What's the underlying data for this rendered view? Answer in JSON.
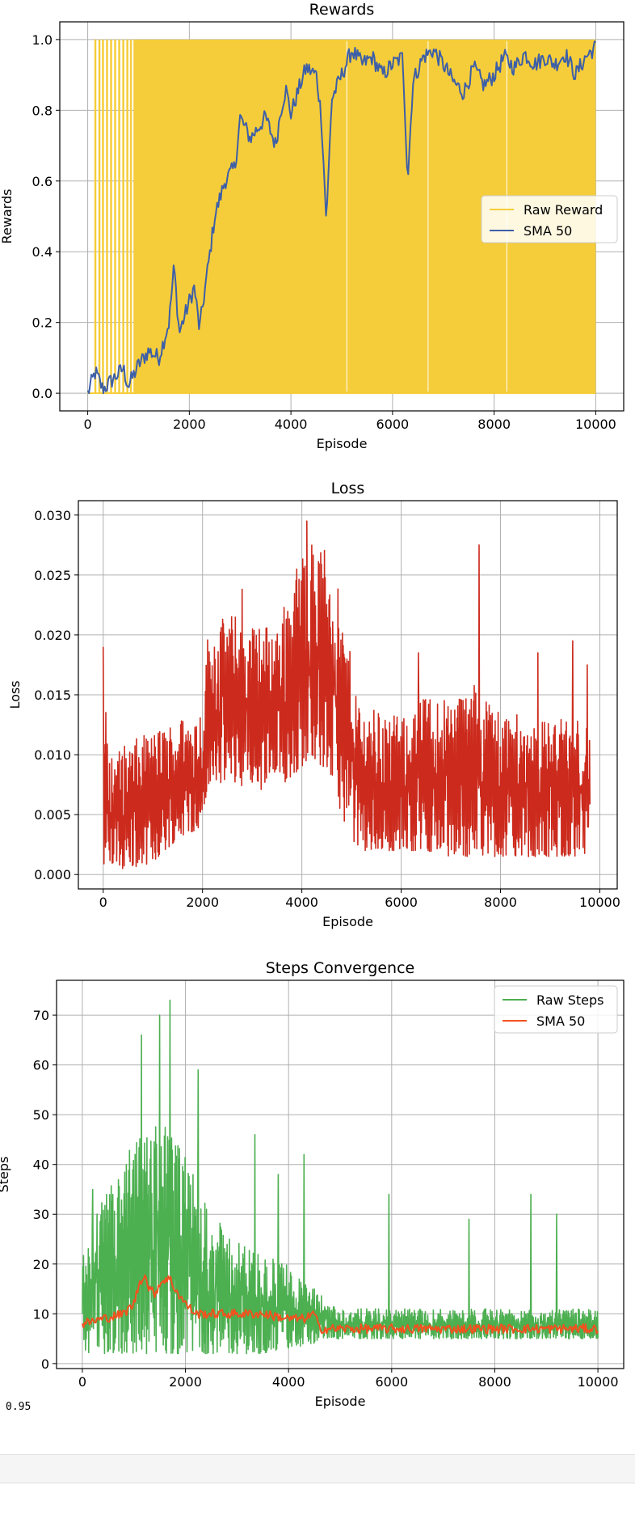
{
  "chart_data": [
    {
      "type": "line",
      "title": "Rewards",
      "xlabel": "Episode",
      "ylabel": "Rewards",
      "xlim": [
        -550,
        10550
      ],
      "ylim": [
        -0.05,
        1.05
      ],
      "xticks": [
        "0",
        "2000",
        "4000",
        "6000",
        "8000",
        "10000"
      ],
      "yticks": [
        "0.0",
        "0.2",
        "0.4",
        "0.6",
        "0.8",
        "1.0"
      ],
      "grid": true,
      "legend": "center-right",
      "series": [
        {
          "name": "Raw Reward",
          "color": "#f5cd3a",
          "style": "dense-band",
          "x": [
            0,
            10000
          ],
          "band": [
            [
              0,
              1
            ]
          ],
          "early_spikes_x": [
            150,
            230,
            300,
            380,
            460,
            540,
            620,
            700,
            780,
            850
          ]
        },
        {
          "name": "SMA 50",
          "color": "#3d5fa8",
          "x": [
            0,
            150,
            300,
            500,
            700,
            800,
            1000,
            1200,
            1400,
            1600,
            1700,
            1800,
            2000,
            2100,
            2200,
            2400,
            2500,
            2700,
            2900,
            3000,
            3200,
            3300,
            3500,
            3700,
            3800,
            3900,
            4000,
            4200,
            4300,
            4500,
            4600,
            4700,
            4800,
            5000,
            5200,
            5400,
            5600,
            5800,
            6000,
            6200,
            6300,
            6400,
            6600,
            6800,
            7000,
            7200,
            7400,
            7600,
            7800,
            8000,
            8200,
            8400,
            8600,
            8800,
            9000,
            9200,
            9400,
            9600,
            9800,
            10000
          ],
          "values": [
            0.0,
            0.06,
            0.01,
            0.04,
            0.07,
            0.02,
            0.08,
            0.12,
            0.1,
            0.2,
            0.36,
            0.17,
            0.26,
            0.3,
            0.18,
            0.39,
            0.5,
            0.6,
            0.64,
            0.78,
            0.72,
            0.74,
            0.78,
            0.7,
            0.8,
            0.86,
            0.79,
            0.88,
            0.92,
            0.9,
            0.78,
            0.48,
            0.83,
            0.9,
            0.97,
            0.93,
            0.95,
            0.9,
            0.93,
            0.95,
            0.6,
            0.88,
            0.95,
            0.97,
            0.93,
            0.88,
            0.85,
            0.92,
            0.87,
            0.9,
            0.95,
            0.92,
            0.96,
            0.93,
            0.95,
            0.93,
            0.96,
            0.9,
            0.95,
            0.98
          ]
        }
      ]
    },
    {
      "type": "line",
      "title": "Loss",
      "xlabel": "Episode",
      "ylabel": "Loss",
      "xlim": [
        -500,
        10350
      ],
      "ylim": [
        -0.0012,
        0.0312
      ],
      "xticks": [
        "0",
        "2000",
        "4000",
        "6000",
        "8000",
        "10000"
      ],
      "yticks": [
        "0.000",
        "0.005",
        "0.010",
        "0.015",
        "0.020",
        "0.025",
        "0.030"
      ],
      "grid": true,
      "series": [
        {
          "name": "",
          "color": "#cc2a1c",
          "style": "dense-band",
          "x": [
            0,
            100,
            500,
            1000,
            1500,
            2000,
            2100,
            2500,
            3000,
            3500,
            4000,
            4200,
            4600,
            4800,
            5000,
            5200,
            5500,
            6000,
            6500,
            7000,
            7500,
            8000,
            8500,
            9000,
            9500,
            9800
          ],
          "band": [
            [
              0.0005,
              0.018
            ],
            [
              0.0005,
              0.01
            ],
            [
              0.0005,
              0.011
            ],
            [
              0.001,
              0.012
            ],
            [
              0.003,
              0.013
            ],
            [
              0.004,
              0.014
            ],
            [
              0.007,
              0.02
            ],
            [
              0.008,
              0.022
            ],
            [
              0.007,
              0.021
            ],
            [
              0.007,
              0.021
            ],
            [
              0.009,
              0.027
            ],
            [
              0.01,
              0.028
            ],
            [
              0.008,
              0.027
            ],
            [
              0.005,
              0.022
            ],
            [
              0.003,
              0.018
            ],
            [
              0.002,
              0.014
            ],
            [
              0.002,
              0.014
            ],
            [
              0.002,
              0.013
            ],
            [
              0.002,
              0.015
            ],
            [
              0.0015,
              0.015
            ],
            [
              0.0015,
              0.016
            ],
            [
              0.0015,
              0.014
            ],
            [
              0.0015,
              0.013
            ],
            [
              0.0015,
              0.013
            ],
            [
              0.0015,
              0.013
            ],
            [
              0.0015,
              0.013
            ]
          ],
          "peaks": [
            [
              0,
              0.019
            ],
            [
              4100,
              0.0295
            ],
            [
              7570,
              0.0275
            ],
            [
              6350,
              0.0185
            ],
            [
              9450,
              0.0195
            ],
            [
              9750,
              0.0175
            ],
            [
              8750,
              0.0185
            ],
            [
              2800,
              0.0238
            ]
          ]
        }
      ]
    },
    {
      "type": "line",
      "title": "Steps Convergence",
      "xlabel": "Episode",
      "ylabel": "Steps",
      "xlim": [
        -500,
        10500
      ],
      "ylim": [
        -1,
        77
      ],
      "xticks": [
        "0",
        "2000",
        "4000",
        "6000",
        "8000",
        "10000"
      ],
      "yticks": [
        "0",
        "10",
        "20",
        "30",
        "40",
        "50",
        "60",
        "70"
      ],
      "grid": true,
      "legend": "top-right",
      "series": [
        {
          "name": "Raw Steps",
          "color": "#4caf50",
          "style": "dense-band",
          "x": [
            0,
            500,
            1000,
            1500,
            2000,
            2500,
            3000,
            3500,
            4000,
            4500,
            5000,
            6000,
            7000,
            8000,
            9000,
            10000
          ],
          "band": [
            [
              2,
              25
            ],
            [
              2,
              35
            ],
            [
              2,
              45
            ],
            [
              2,
              50
            ],
            [
              2,
              42
            ],
            [
              2,
              30
            ],
            [
              2,
              25
            ],
            [
              2,
              22
            ],
            [
              3,
              20
            ],
            [
              4,
              15
            ],
            [
              5,
              11
            ],
            [
              5,
              11
            ],
            [
              5,
              11
            ],
            [
              5,
              11
            ],
            [
              5,
              11
            ],
            [
              5,
              11
            ]
          ],
          "peaks": [
            [
              1700,
              73
            ],
            [
              1500,
              70
            ],
            [
              1150,
              66
            ],
            [
              2250,
              59
            ],
            [
              3350,
              46
            ],
            [
              4300,
              42
            ],
            [
              5950,
              34
            ],
            [
              8700,
              34
            ],
            [
              9200,
              30
            ],
            [
              3800,
              38
            ],
            [
              7500,
              29
            ],
            [
              200,
              35
            ]
          ]
        },
        {
          "name": "SMA 50",
          "color": "#f4511e",
          "x": [
            0,
            400,
            800,
            1000,
            1100,
            1200,
            1300,
            1400,
            1500,
            1600,
            1700,
            1800,
            2000,
            2200,
            2500,
            3000,
            3500,
            4000,
            4300,
            4500,
            4600,
            5000,
            6000,
            7000,
            8000,
            9000,
            10000
          ],
          "values": [
            8,
            9,
            10,
            12,
            16,
            18,
            15,
            14,
            16,
            17,
            17,
            15,
            12,
            10,
            10,
            10,
            10,
            9,
            9,
            10,
            7,
            7,
            7,
            7,
            7,
            7,
            7
          ]
        }
      ]
    }
  ],
  "output": {
    "text": "0.95"
  }
}
